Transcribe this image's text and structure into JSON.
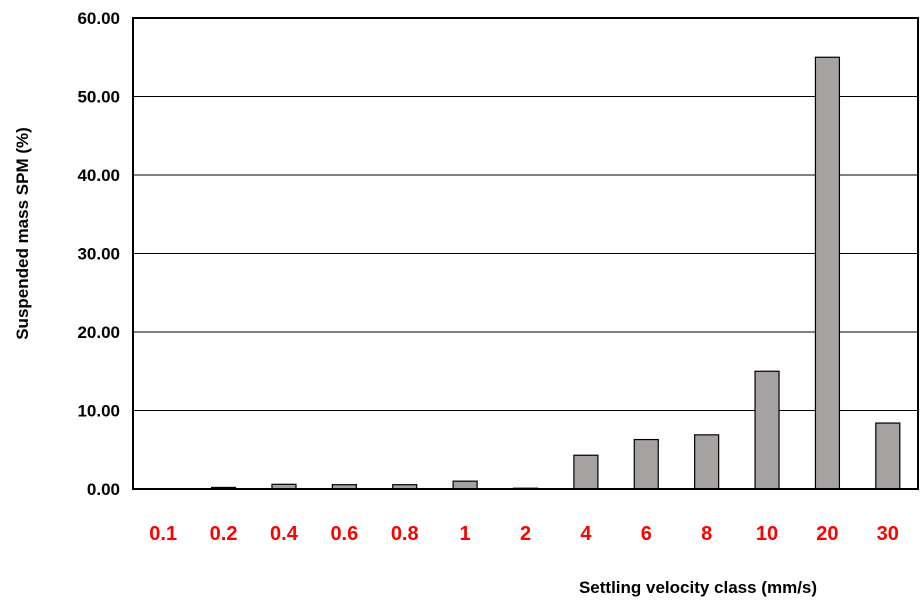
{
  "chart_data": {
    "type": "bar",
    "title": "",
    "xlabel": "Settling velocity class (mm/s)",
    "ylabel": "Suspended mass  SPM (%)",
    "categories": [
      "0.1",
      "0.2",
      "0.4",
      "0.6",
      "0.8",
      "1",
      "2",
      "4",
      "6",
      "8",
      "10",
      "20",
      "30"
    ],
    "values": [
      0.05,
      0.2,
      0.6,
      0.55,
      0.55,
      1.0,
      0.1,
      4.3,
      6.3,
      6.9,
      15.0,
      55.0,
      8.4
    ],
    "ylim": [
      0,
      60
    ],
    "yticks": [
      "0.00",
      "10.00",
      "20.00",
      "30.00",
      "40.00",
      "50.00",
      "60.00"
    ],
    "grid": true,
    "legend": "none",
    "colors": {
      "bar_fill": "#a6a2a2",
      "bar_stroke": "#000000",
      "category_label": "#ff0000",
      "grid": "#000000"
    }
  }
}
